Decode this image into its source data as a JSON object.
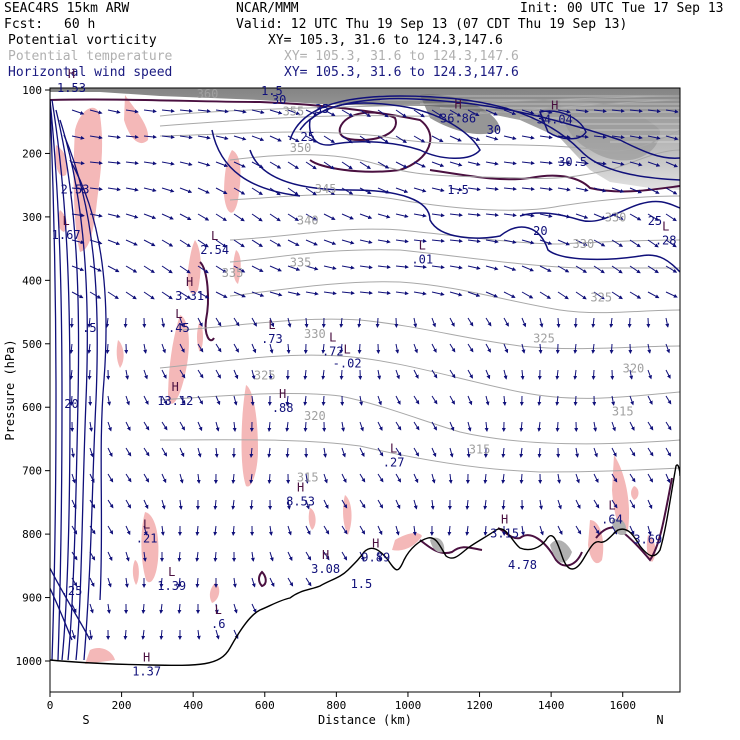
{
  "header": {
    "model": "SEAC4RS 15km ARW",
    "center": "NCAR/MMM",
    "init": "Init: 00 UTC Tue 17 Sep 13",
    "fcst_label": "Fcst:",
    "fcst_value": "60 h",
    "valid": "Valid: 12 UTC Thu 19 Sep 13 (07 CDT Thu 19 Sep 13)"
  },
  "fields": [
    {
      "name": "Potential vorticity",
      "xy": "XY= 105.3, 31.6 to 124.3,147.6",
      "color": "#000000"
    },
    {
      "name": "Potential temperature",
      "xy": "XY= 105.3, 31.6 to 124.3,147.6",
      "color": "#b0b0b0"
    },
    {
      "name": "Horizontal wind speed",
      "xy": "XY= 105.3, 31.6 to 124.3,147.6",
      "color": "#1a1a80"
    }
  ],
  "chart_data": {
    "type": "cross-section",
    "xlabel": "Distance (km)",
    "ylabel": "Pressure (hPa)",
    "xlim": [
      0,
      1760
    ],
    "ylim": [
      1050,
      100
    ],
    "x_ticks": [
      0,
      200,
      400,
      600,
      800,
      1000,
      1200,
      1400,
      1600
    ],
    "y_ticks": [
      100,
      200,
      300,
      400,
      500,
      600,
      700,
      800,
      900,
      1000
    ],
    "left_end": "S",
    "right_end": "N",
    "colors": {
      "wind": "#10107a",
      "theta": "#a8a8a8",
      "pv_high": "#f4b8b8",
      "pv_line": "#4a1040",
      "terrain": "#000000"
    },
    "theta_labels": [
      {
        "x": 440,
        "p": 113,
        "text": "360"
      },
      {
        "x": 680,
        "p": 140,
        "text": "355"
      },
      {
        "x": 700,
        "p": 198,
        "text": "350"
      },
      {
        "x": 770,
        "p": 262,
        "text": "345"
      },
      {
        "x": 720,
        "p": 312,
        "text": "340"
      },
      {
        "x": 1580,
        "p": 307,
        "text": "330"
      },
      {
        "x": 1490,
        "p": 349,
        "text": "330"
      },
      {
        "x": 700,
        "p": 378,
        "text": "335"
      },
      {
        "x": 1540,
        "p": 433,
        "text": "325"
      },
      {
        "x": 510,
        "p": 395,
        "text": "335"
      },
      {
        "x": 740,
        "p": 491,
        "text": "330"
      },
      {
        "x": 1380,
        "p": 498,
        "text": "325"
      },
      {
        "x": 1630,
        "p": 545,
        "text": "320"
      },
      {
        "x": 600,
        "p": 556,
        "text": "325"
      },
      {
        "x": 740,
        "p": 620,
        "text": "320"
      },
      {
        "x": 1600,
        "p": 613,
        "text": "315"
      },
      {
        "x": 1200,
        "p": 673,
        "text": "315"
      },
      {
        "x": 720,
        "p": 717,
        "text": "315"
      }
    ],
    "wind_labels": [
      {
        "x": 620,
        "p": 108,
        "text": "1.5"
      },
      {
        "x": 640,
        "p": 122,
        "text": "30"
      },
      {
        "x": 760,
        "p": 136,
        "text": "35"
      },
      {
        "x": 720,
        "p": 180,
        "text": "25"
      },
      {
        "x": 1240,
        "p": 169,
        "text": "30"
      },
      {
        "x": 1460,
        "p": 220,
        "text": "30.5"
      },
      {
        "x": 1140,
        "p": 264,
        "text": "1.5"
      },
      {
        "x": 1690,
        "p": 313,
        "text": "25"
      }
    ],
    "extrema": [
      {
        "x": 60,
        "p": 100,
        "mark": "H",
        "value": "1.53",
        "y_offset": -2
      },
      {
        "x": 70,
        "p": 260,
        "mark": "",
        "value": "2.53",
        "y_offset": 0
      },
      {
        "x": 45,
        "p": 332,
        "mark": "L",
        "value": "1.67",
        "y_offset": 0
      },
      {
        "x": 460,
        "p": 355,
        "mark": "L",
        "value": "2.54",
        "y_offset": 0
      },
      {
        "x": 390,
        "p": 428,
        "mark": "H",
        "value": "3.31",
        "y_offset": 0
      },
      {
        "x": 360,
        "p": 478,
        "mark": "L",
        "value": ".45",
        "y_offset": 0
      },
      {
        "x": 110,
        "p": 478,
        "mark": "",
        "value": ".5",
        "y_offset": 0
      },
      {
        "x": 620,
        "p": 496,
        "mark": "L",
        "value": ".73",
        "y_offset": 0
      },
      {
        "x": 790,
        "p": 515,
        "mark": "L",
        "value": ".72",
        "y_offset": 0
      },
      {
        "x": 830,
        "p": 534,
        "mark": "L",
        "value": "-.02",
        "y_offset": 0
      },
      {
        "x": 350,
        "p": 593,
        "mark": "H",
        "value": "13.12",
        "y_offset": 0
      },
      {
        "x": 650,
        "p": 604,
        "mark": "H",
        "value": ".88",
        "y_offset": 0
      },
      {
        "x": 60,
        "p": 598,
        "mark": "",
        "value": "20",
        "y_offset": 0
      },
      {
        "x": 960,
        "p": 690,
        "mark": "L",
        "value": ".27",
        "y_offset": 0
      },
      {
        "x": 700,
        "p": 752,
        "mark": "H",
        "value": "8.53",
        "y_offset": 0
      },
      {
        "x": 1040,
        "p": 370,
        "mark": "L",
        "value": ".01",
        "y_offset": 0
      },
      {
        "x": 1140,
        "p": 148,
        "mark": "H",
        "value": "36.86",
        "y_offset": 0
      },
      {
        "x": 1410,
        "p": 150,
        "mark": "H",
        "value": "34.04",
        "y_offset": 0
      },
      {
        "x": 1720,
        "p": 340,
        "mark": "L",
        "value": ".28",
        "y_offset": 0
      },
      {
        "x": 1370,
        "p": 325,
        "mark": "",
        "value": "20",
        "y_offset": 0
      },
      {
        "x": 1270,
        "p": 802,
        "mark": "H",
        "value": "3.15",
        "y_offset": 0
      },
      {
        "x": 1320,
        "p": 852,
        "mark": "",
        "value": "4.78",
        "y_offset": 0
      },
      {
        "x": 1570,
        "p": 780,
        "mark": "L",
        "value": ".64",
        "y_offset": 0
      },
      {
        "x": 1670,
        "p": 812,
        "mark": "",
        "value": "3.69",
        "y_offset": 0
      },
      {
        "x": 910,
        "p": 840,
        "mark": "H",
        "value": "9.89",
        "y_offset": 0
      },
      {
        "x": 870,
        "p": 882,
        "mark": "",
        "value": "1.5",
        "y_offset": 0
      },
      {
        "x": 770,
        "p": 858,
        "mark": "H",
        "value": "3.08",
        "y_offset": 0
      },
      {
        "x": 270,
        "p": 810,
        "mark": "L",
        "value": ".21",
        "y_offset": 0
      },
      {
        "x": 340,
        "p": 885,
        "mark": "L",
        "value": "1.39",
        "y_offset": 0
      },
      {
        "x": 60,
        "p": 893,
        "mark": "",
        "value": ".25",
        "y_offset": 0
      },
      {
        "x": 470,
        "p": 945,
        "mark": "L",
        "value": ".6",
        "y_offset": 0
      },
      {
        "x": 270,
        "p": 1020,
        "mark": "H",
        "value": "1.37",
        "y_offset": 0
      }
    ]
  }
}
